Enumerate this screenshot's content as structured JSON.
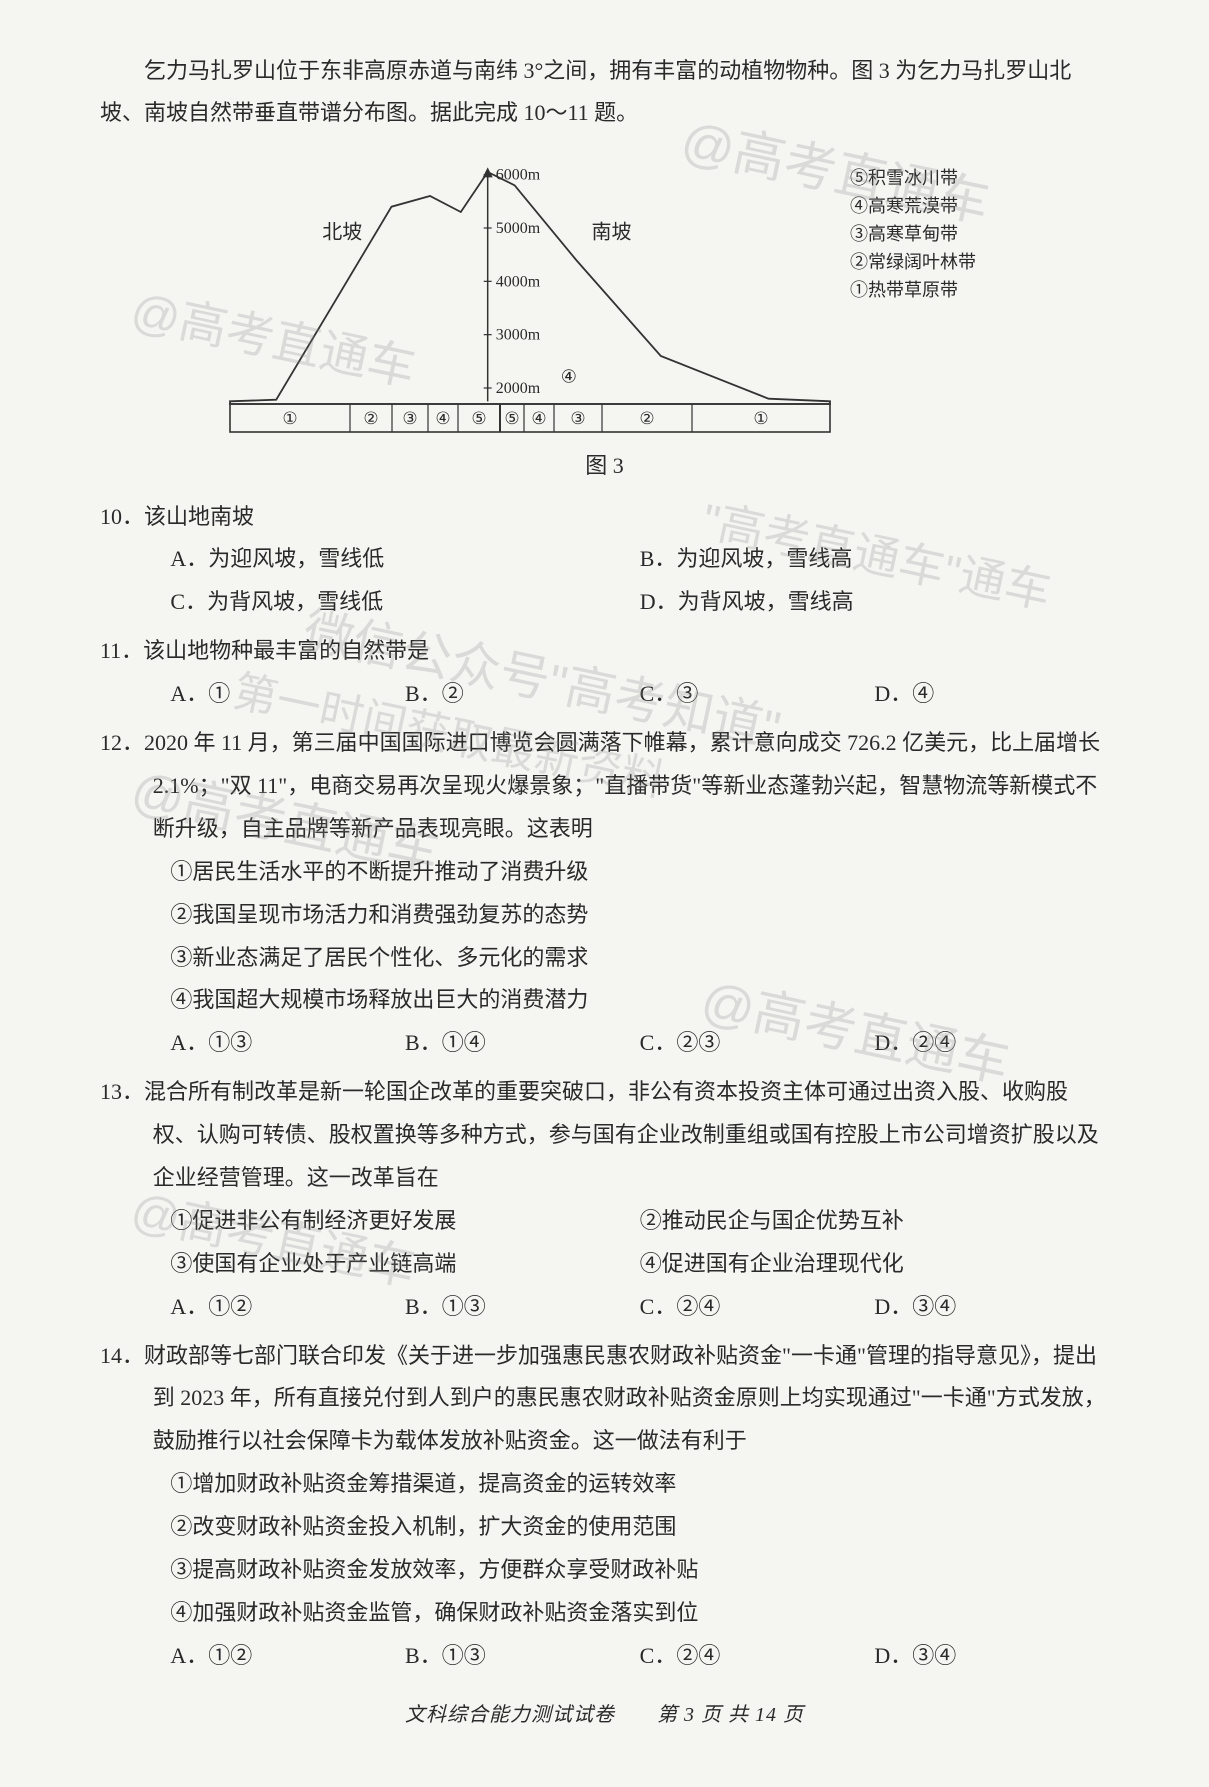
{
  "intro": "乞力马扎罗山位于东非高原赤道与南纬 3°之间，拥有丰富的动植物物种。图 3 为乞力马扎罗山北坡、南坡自然带垂直带谱分布图。据此完成 10～11 题。",
  "figure": {
    "label": "图 3",
    "north_label": "北坡",
    "south_label": "南坡",
    "altitude_ticks": [
      "2000m",
      "3000m",
      "4000m",
      "5000m",
      "6000m"
    ],
    "altitude_values": [
      2000,
      3000,
      4000,
      5000,
      6000
    ],
    "legend": [
      "⑤积雪冰川带",
      "④高寒荒漠带",
      "③高寒草甸带",
      "②常绿阔叶林带",
      "①热带草原带"
    ],
    "north_bands": [
      "①",
      "②",
      "③",
      "④",
      "⑤"
    ],
    "south_bands": [
      "⑤",
      "④",
      "③",
      "②",
      "①"
    ],
    "profile_points": [
      [
        0,
        1750
      ],
      [
        60,
        1780
      ],
      [
        210,
        5400
      ],
      [
        260,
        5600
      ],
      [
        300,
        5300
      ],
      [
        335,
        6050
      ],
      [
        370,
        5800
      ],
      [
        450,
        4400
      ],
      [
        560,
        2600
      ],
      [
        700,
        1800
      ],
      [
        780,
        1750
      ]
    ],
    "colors": {
      "outline": "#333333",
      "fill": "#ffffff",
      "grid": "#333333",
      "text": "#2a2a2a"
    },
    "axis_y_range": [
      1700,
      6200
    ]
  },
  "questions": [
    {
      "num": "10．",
      "stem": "该山地南坡",
      "layout": "2col",
      "options": [
        "A．为迎风坡，雪线低",
        "B．为迎风坡，雪线高",
        "C．为背风坡，雪线低",
        "D．为背风坡，雪线高"
      ]
    },
    {
      "num": "11．",
      "stem": "该山地物种最丰富的自然带是",
      "layout": "4col",
      "options": [
        "A．①",
        "B．②",
        "C．③",
        "D．④"
      ]
    },
    {
      "num": "12．",
      "stem": "2020 年 11 月，第三届中国国际进口博览会圆满落下帷幕，累计意向成交 726.2 亿美元，比上届增长 2.1%；\"双 11\"，电商交易再次呈现火爆景象；\"直播带货\"等新业态蓬勃兴起，智慧物流等新模式不断升级，自主品牌等新产品表现亮眼。这表明",
      "statements": [
        "①居民生活水平的不断提升推动了消费升级",
        "②我国呈现市场活力和消费强劲复苏的态势",
        "③新业态满足了居民个性化、多元化的需求",
        "④我国超大规模市场释放出巨大的消费潜力"
      ],
      "layout": "4col",
      "options": [
        "A．①③",
        "B．①④",
        "C．②③",
        "D．②④"
      ]
    },
    {
      "num": "13．",
      "stem": "混合所有制改革是新一轮国企改革的重要突破口，非公有资本投资主体可通过出资入股、收购股权、认购可转债、股权置换等多种方式，参与国有企业改制重组或国有控股上市公司增资扩股以及企业经营管理。这一改革旨在",
      "statements_inline": [
        [
          "①促进非公有制经济更好发展",
          "②推动民企与国企优势互补"
        ],
        [
          "③使国有企业处于产业链高端",
          "④促进国有企业治理现代化"
        ]
      ],
      "layout": "4col",
      "options": [
        "A．①②",
        "B．①③",
        "C．②④",
        "D．③④"
      ]
    },
    {
      "num": "14．",
      "stem": "财政部等七部门联合印发《关于进一步加强惠民惠农财政补贴资金\"一卡通\"管理的指导意见》，提出到 2023 年，所有直接兑付到人到户的惠民惠农财政补贴资金原则上均实现通过\"一卡通\"方式发放，鼓励推行以社会保障卡为载体发放补贴资金。这一做法有利于",
      "statements": [
        "①增加财政补贴资金筹措渠道，提高资金的运转效率",
        "②改变财政补贴资金投入机制，扩大资金的使用范围",
        "③提高财政补贴资金发放效率，方便群众享受财政补贴",
        "④加强财政补贴资金监管，确保财政补贴资金落实到位"
      ],
      "layout": "4col",
      "options": [
        "A．①②",
        "B．①③",
        "C．②④",
        "D．③④"
      ]
    }
  ],
  "footer": "文科综合能力测试试卷　　第 3 页 共 14 页",
  "watermarks": {
    "w1": "@高考直通车",
    "w2": "@高考直通车",
    "w3": "\"高考直通车\"通车",
    "w4": "微信公众号\"高考知道\"",
    "w4b": "第一时间获取最新资料",
    "w5": "@高考直通车",
    "w6": "@高考直通车",
    "w7": "@高考直通车"
  }
}
